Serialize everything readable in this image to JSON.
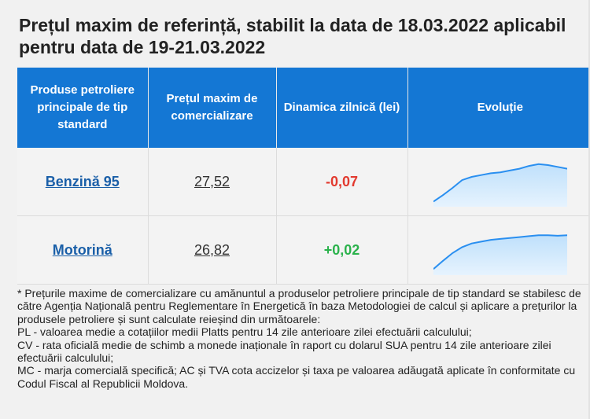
{
  "title": "Prețul maxim de referință, stabilit la data de 18.03.2022 aplicabil pentru data de 19-21.03.2022",
  "table": {
    "headers": [
      "Produse petroliere principale de tip standard",
      "Prețul maxim de comercializare",
      "Dinamica zilnică (lei)",
      "Evoluție"
    ],
    "rows": [
      {
        "product": "Benzină 95",
        "price": "27,52",
        "dynamic": "-0,07",
        "evolution": [
          0.08,
          0.22,
          0.38,
          0.55,
          0.62,
          0.66,
          0.7,
          0.72,
          0.76,
          0.8,
          0.86,
          0.9,
          0.88,
          0.84,
          0.8
        ]
      },
      {
        "product": "Motorină",
        "price": "26,82",
        "dynamic": "+0,02",
        "evolution": [
          0.1,
          0.28,
          0.45,
          0.58,
          0.66,
          0.7,
          0.74,
          0.76,
          0.78,
          0.8,
          0.82,
          0.84,
          0.84,
          0.83,
          0.84
        ]
      }
    ]
  },
  "colors": {
    "header_bg": "#1477d4",
    "negative": "#e23a2f",
    "positive": "#2bb24c",
    "spark_line": "#2a8ff0",
    "spark_fill": "#bfe0fb"
  },
  "notes": [
    "* Prețurile maxime de comercializare cu amănuntul a produselor petroliere principale de tip standard se stabilesc de către Agenția Națională pentru Reglementare în Energetică în baza Metodologiei de calcul și aplicare a prețurilor la produsele petroliere și sunt calculate reieșind din următoarele:",
    "PL - valoarea medie a cotațiilor medii Platts pentru 14 zile anterioare zilei efectuării calculului;",
    "CV - rata oficială medie de schimb a monede inaționale în raport cu dolarul SUA pentru 14 zile anterioare zilei efectuării calculului;",
    "MC - marja comercială specifică; AC și TVA cota accizelor și taxa pe valoarea adăugată aplicate în conformitate cu Codul Fiscal al Republicii Moldova."
  ]
}
